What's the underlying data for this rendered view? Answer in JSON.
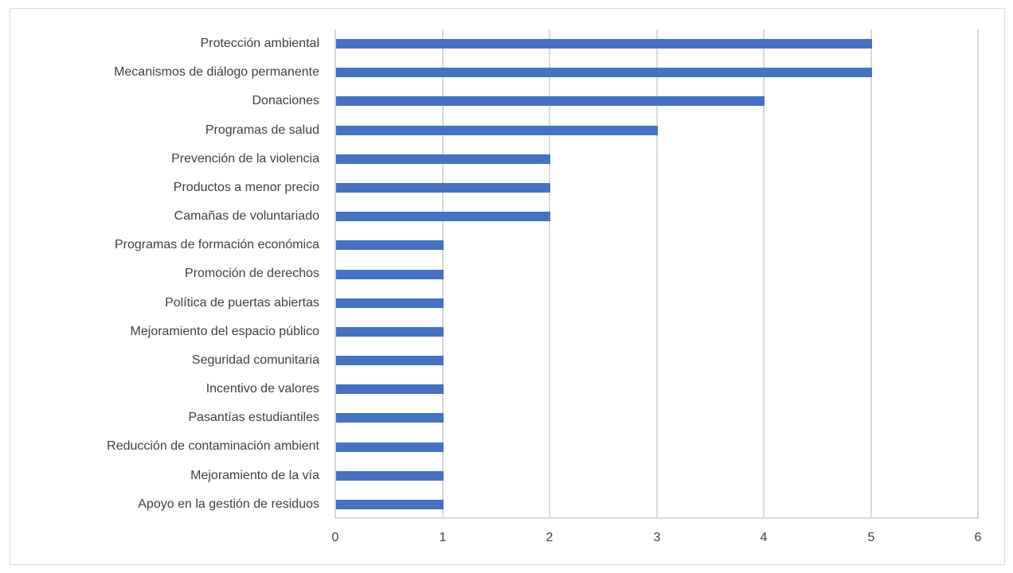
{
  "chart_data": {
    "type": "bar",
    "orientation": "horizontal",
    "title": "",
    "xlabel": "",
    "ylabel": "",
    "categories": [
      "Protección ambiental",
      "Mecanismos de diálogo permanente",
      "Donaciones",
      "Programas de salud",
      "Prevención de la violencia",
      "Productos a menor precio",
      "Camañas de voluntariado",
      "Programas de formación económica",
      "Promoción de derechos",
      "Política de puertas abiertas",
      "Mejoramiento del espacio público",
      "Seguridad comunitaria",
      "Incentivo de valores",
      "Pasantías estudiantiles",
      "Reducción de contaminación ambient",
      "Mejoramiento de la vía",
      "Apoyo en la gestión de residuos"
    ],
    "values": [
      5,
      5,
      4,
      3,
      2,
      2,
      2,
      1,
      1,
      1,
      1,
      1,
      1,
      1,
      1,
      1,
      1
    ],
    "xlim": [
      0,
      6
    ],
    "xticks": [
      "0",
      "1",
      "2",
      "3",
      "4",
      "5",
      "6"
    ],
    "grid": true,
    "legend": false,
    "colors": {
      "bar": "#4472C4",
      "gridline": "#D9D9D9",
      "axis_line": "#D9D9D9",
      "text": "#404040",
      "frame_border": "#D9D9D9",
      "background": "#FFFFFF"
    }
  }
}
